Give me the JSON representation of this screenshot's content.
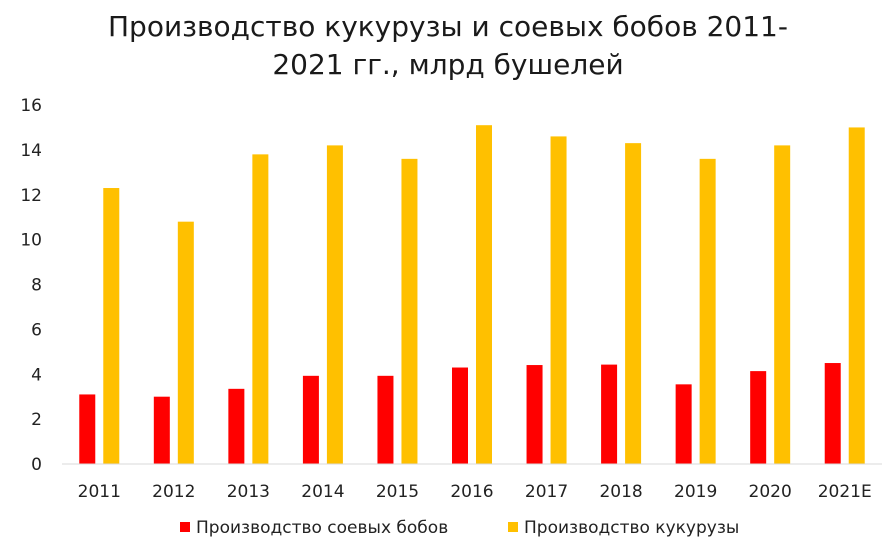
{
  "chart_data": {
    "type": "bar",
    "title_lines": [
      "Производство кукурузы и соевых бобов 2011-",
      "2021 гг., млрд бушелей"
    ],
    "categories": [
      "2011",
      "2012",
      "2013",
      "2014",
      "2015",
      "2016",
      "2017",
      "2018",
      "2019",
      "2020",
      "2021E"
    ],
    "series": [
      {
        "name": "Производство соевых бобов",
        "color": "#ff0000",
        "values": [
          3.1,
          3.0,
          3.35,
          3.93,
          3.93,
          4.3,
          4.41,
          4.43,
          3.55,
          4.14,
          4.5
        ]
      },
      {
        "name": "Производство кукурузы",
        "color": "#ffc000",
        "values": [
          12.3,
          10.8,
          13.8,
          14.2,
          13.6,
          15.1,
          14.6,
          14.3,
          13.6,
          14.2,
          15.0
        ]
      }
    ],
    "ylim": [
      0,
      16
    ],
    "yticks": [
      "0",
      "2",
      "4",
      "6",
      "8",
      "10",
      "12",
      "14",
      "16"
    ],
    "grid": false,
    "legend_position": "bottom"
  }
}
